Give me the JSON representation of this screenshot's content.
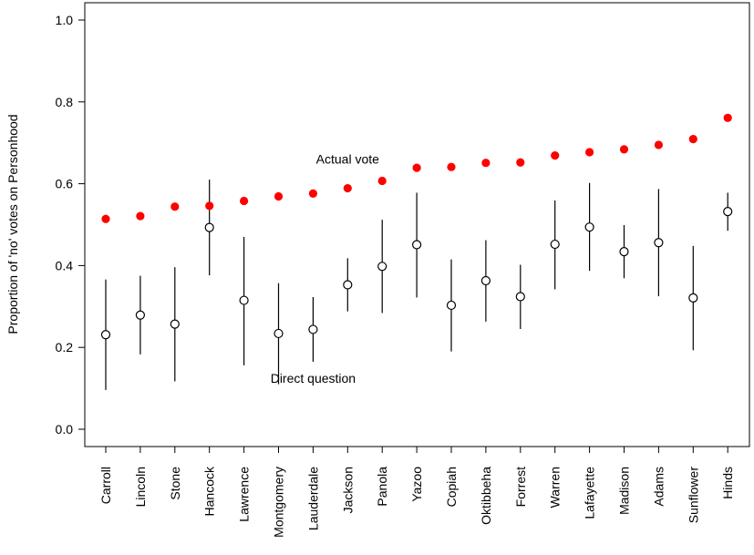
{
  "chart_data": {
    "type": "scatter",
    "title": "",
    "xlabel": "",
    "ylabel": "Proportion of 'no' votes on Personhood",
    "ylim": [
      0.0,
      1.0
    ],
    "yticks": [
      "0.0",
      "0.2",
      "0.4",
      "0.6",
      "0.8",
      "1.0"
    ],
    "grid": false,
    "legend": "none",
    "categories": [
      "Carroll",
      "Lincoln",
      "Stone",
      "Hancock",
      "Lawrence",
      "Montgomery",
      "Lauderdale",
      "Jackson",
      "Panola",
      "Yazoo",
      "Copiah",
      "Oktibbeha",
      "Forrest",
      "Warren",
      "Lafayette",
      "Madison",
      "Adams",
      "Sunflower",
      "Hinds"
    ],
    "series": [
      {
        "marker": "filled-circle",
        "color": "#ff0000",
        "values": [
          0.514,
          0.521,
          0.544,
          0.546,
          0.558,
          0.569,
          0.576,
          0.589,
          0.607,
          0.639,
          0.641,
          0.651,
          0.652,
          0.669,
          0.677,
          0.684,
          0.695,
          0.709,
          0.761
        ]
      },
      {
        "marker": "open-circle",
        "color": "#000000",
        "values": [
          0.231,
          0.279,
          0.257,
          0.493,
          0.315,
          0.234,
          0.244,
          0.353,
          0.398,
          0.451,
          0.303,
          0.363,
          0.324,
          0.452,
          0.494,
          0.434,
          0.456,
          0.321,
          0.532
        ],
        "lower": [
          0.096,
          0.183,
          0.117,
          0.376,
          0.156,
          0.11,
          0.165,
          0.288,
          0.284,
          0.322,
          0.19,
          0.263,
          0.245,
          0.342,
          0.387,
          0.369,
          0.325,
          0.193,
          0.485
        ],
        "upper": [
          0.366,
          0.375,
          0.396,
          0.61,
          0.47,
          0.357,
          0.323,
          0.418,
          0.512,
          0.578,
          0.415,
          0.462,
          0.402,
          0.559,
          0.602,
          0.499,
          0.587,
          0.448,
          0.578
        ]
      }
    ],
    "annotations": [
      {
        "text": "Actual vote",
        "x": "Jackson",
        "y": 0.66
      },
      {
        "text": "Direct question",
        "x": "Lauderdale",
        "y": 0.125
      }
    ]
  }
}
